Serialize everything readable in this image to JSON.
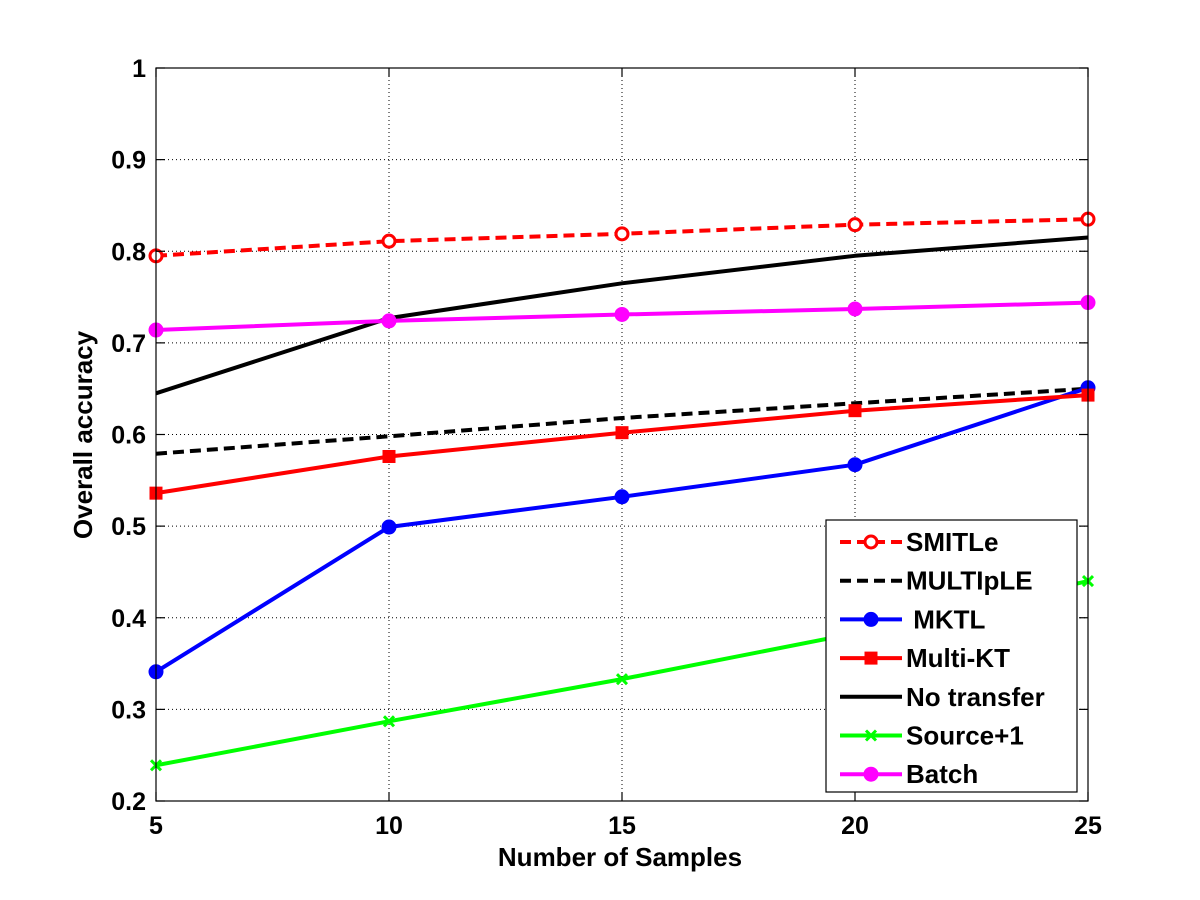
{
  "chart_data": {
    "type": "line",
    "title": "",
    "xlabel": "Number of Samples",
    "ylabel": "Overall accuracy",
    "x": [
      5,
      10,
      15,
      20,
      25
    ],
    "xlim": [
      5,
      25
    ],
    "ylim": [
      0.2,
      1.0
    ],
    "xticks": [
      "5",
      "10",
      "15",
      "20",
      "25"
    ],
    "yticks": [
      "0.2",
      "0.3",
      "0.4",
      "0.5",
      "0.6",
      "0.7",
      "0.8",
      "0.9",
      "1"
    ],
    "grid": true,
    "legend_position": "bottom-right",
    "series": [
      {
        "name": "SMITLe",
        "values": [
          0.795,
          0.811,
          0.819,
          0.829,
          0.835
        ],
        "color": "#ff0000",
        "dash": true,
        "marker": "open-circle"
      },
      {
        "name": "MULTIpLE",
        "values": [
          0.579,
          0.598,
          0.618,
          0.634,
          0.65
        ],
        "color": "#000000",
        "dash": true,
        "marker": "none"
      },
      {
        "name": " MKTL",
        "values": [
          0.341,
          0.499,
          0.532,
          0.567,
          0.651
        ],
        "color": "#0000ff",
        "dash": false,
        "marker": "filled-circle"
      },
      {
        "name": "Multi-KT",
        "values": [
          0.536,
          0.576,
          0.602,
          0.626,
          0.643
        ],
        "color": "#ff0000",
        "dash": false,
        "marker": "square"
      },
      {
        "name": "No transfer",
        "values": [
          0.645,
          0.727,
          0.765,
          0.795,
          0.815
        ],
        "color": "#000000",
        "dash": false,
        "marker": "none"
      },
      {
        "name": "Source+1",
        "values": [
          0.239,
          0.287,
          0.333,
          0.383,
          0.44
        ],
        "color": "#00ff00",
        "dash": false,
        "marker": "x"
      },
      {
        "name": "Batch",
        "values": [
          0.714,
          0.724,
          0.731,
          0.737,
          0.744
        ],
        "color": "#ff00ff",
        "dash": false,
        "marker": "filled-circle"
      }
    ]
  }
}
